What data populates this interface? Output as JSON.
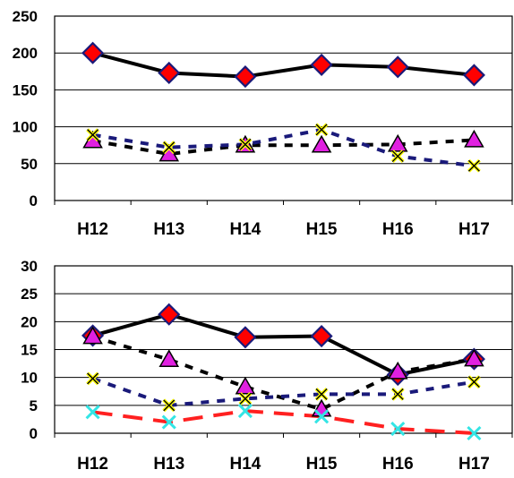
{
  "chart_data": [
    {
      "type": "line",
      "categories": [
        "H12",
        "H13",
        "H14",
        "H15",
        "H16",
        "H17"
      ],
      "ylim": [
        0,
        250
      ],
      "yticks": [
        0,
        50,
        100,
        150,
        200,
        250
      ],
      "grid": true,
      "series": [
        {
          "marker": "diamond",
          "line": "solid",
          "color": "#000000",
          "marker_fill": "#ff0000",
          "marker_stroke": "#1a1a7a",
          "values": [
            200,
            173,
            168,
            184,
            181,
            170
          ]
        },
        {
          "marker": "triangle",
          "line": "dashed",
          "color": "#000000",
          "marker_fill": "#e020e0",
          "marker_stroke": "#000000",
          "values": [
            81,
            63,
            75,
            75,
            76,
            82
          ]
        },
        {
          "marker": "x-square",
          "line": "dashed",
          "color": "#1a1a7a",
          "marker_fill": "#ffff00",
          "marker_stroke": "#000000",
          "values": [
            89,
            72,
            76,
            96,
            60,
            47
          ]
        }
      ]
    },
    {
      "type": "line",
      "categories": [
        "H12",
        "H13",
        "H14",
        "H15",
        "H16",
        "H17"
      ],
      "ylim": [
        0,
        30
      ],
      "yticks": [
        0,
        5,
        10,
        15,
        20,
        25,
        30
      ],
      "grid": true,
      "series": [
        {
          "marker": "diamond",
          "line": "solid",
          "color": "#000000",
          "marker_fill": "#ff0000",
          "marker_stroke": "#1a1a7a",
          "values": [
            17.5,
            21.3,
            17.2,
            17.4,
            10.5,
            13.3
          ]
        },
        {
          "marker": "triangle",
          "line": "dashed",
          "color": "#000000",
          "marker_fill": "#e020e0",
          "marker_stroke": "#000000",
          "values": [
            17.3,
            13.2,
            8.3,
            4.3,
            11,
            13.3
          ]
        },
        {
          "marker": "x-square",
          "line": "dashed",
          "color": "#1a1a7a",
          "marker_fill": "#ffff00",
          "marker_stroke": "#000000",
          "values": [
            9.8,
            5,
            6.2,
            7,
            7,
            9.2
          ]
        },
        {
          "marker": "x",
          "line": "dashed",
          "color": "#ff2020",
          "marker_fill": "none",
          "marker_stroke": "#33e5e5",
          "values": [
            3.8,
            2,
            4,
            3,
            0.8,
            0
          ]
        }
      ]
    }
  ]
}
